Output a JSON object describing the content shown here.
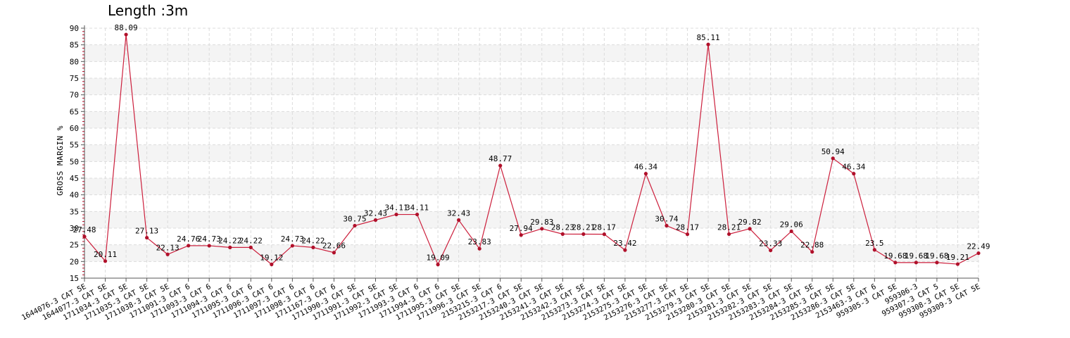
{
  "chart_data": {
    "type": "line",
    "title": "Length :3m",
    "xlabel": "",
    "ylabel": "GROSS MARGIN %",
    "ylim": [
      15,
      90
    ],
    "ytick_step": 5,
    "grid": true,
    "legend": "none",
    "colors": {
      "line": "#cc1f3c",
      "point": "#b0102a",
      "band": "#f4f4f4",
      "grid": "#dcdcdc",
      "axis": "#555555"
    },
    "categories": [
      "1644076-3 CAT 5E",
      "1644077-3 CAT 5E",
      "1711034-3 CAT 5E",
      "1711035-3 CAT 5E",
      "1711038-3 CAT 5E",
      "1711091-3 CAT 6",
      "1711093-3 CAT 6",
      "1711094-3 CAT 6",
      "1711095-3 CAT 6",
      "1711096-3 CAT 6",
      "1711097-3 CAT 6",
      "1711098-3 CAT 6",
      "1711167-3 CAT 6",
      "1711990-3 CAT 5E",
      "1711991-3 CAT 5E",
      "1711992-3 CAT 5E",
      "1711993-3 CAT 6",
      "1711994-3 CAT 6",
      "1711995-3 CAT 5E",
      "1711996-3 CAT 5E",
      "2153215-3 CAT 6",
      "2153217-3 CAT 5E",
      "2153240-3 CAT 5E",
      "2153241-3 CAT 5E",
      "2153242-3 CAT 5E",
      "2153273-3 CAT 5E",
      "2153274-3 CAT 5E",
      "2153275-3 CAT 5E",
      "2153276-3 CAT 5E",
      "2153277-3 CAT 5E",
      "2153279-3 CAT 5E",
      "2153280-3 CAT 5E",
      "2153281-3 CAT 5E",
      "2153282-3 CAT 5E",
      "2153283-3 CAT 5E",
      "2153284-3 CAT 5E",
      "2153285-3 CAT 5E",
      "2153286-3 CAT 5E",
      "2153463-3 CAT 6",
      "959305-3 CAT 5E",
      "959306-3",
      "959307-3 CAT 5",
      "959308-3 CAT 5E",
      "959309-3 CAT 5E"
    ],
    "values": [
      27.48,
      20.11,
      88.09,
      27.13,
      22.13,
      24.76,
      24.73,
      24.22,
      24.22,
      19.12,
      24.73,
      24.22,
      22.66,
      30.75,
      32.43,
      34.11,
      34.11,
      19.09,
      32.43,
      23.83,
      48.77,
      27.94,
      29.83,
      28.23,
      28.21,
      28.17,
      23.42,
      46.34,
      30.74,
      28.17,
      85.11,
      28.21,
      29.82,
      23.33,
      29.06,
      22.88,
      50.94,
      46.34,
      23.5,
      19.68,
      19.68,
      19.68,
      19.21,
      22.49
    ],
    "data_labels": [
      "27.48",
      "20.11",
      "88.09",
      "27.13",
      "22.13",
      "24.76",
      "24.73",
      "24.22",
      "24.22",
      "19.12",
      "24.73",
      "24.22",
      "22.66",
      "30.75",
      "32.43",
      "34.11",
      "34.11",
      "19.09",
      "32.43",
      "23.83",
      "48.77",
      "27.94",
      "29.83",
      "28.23",
      "28.21",
      "28.17",
      "23.42",
      "46.34",
      "30.74",
      "28.17",
      "85.11",
      "28.21",
      "29.82",
      "23.33",
      "29.06",
      "22.88",
      "50.94",
      "46.34",
      "23.5",
      "19.68",
      "19.68",
      "19.68",
      "19.21",
      "22.49"
    ]
  }
}
